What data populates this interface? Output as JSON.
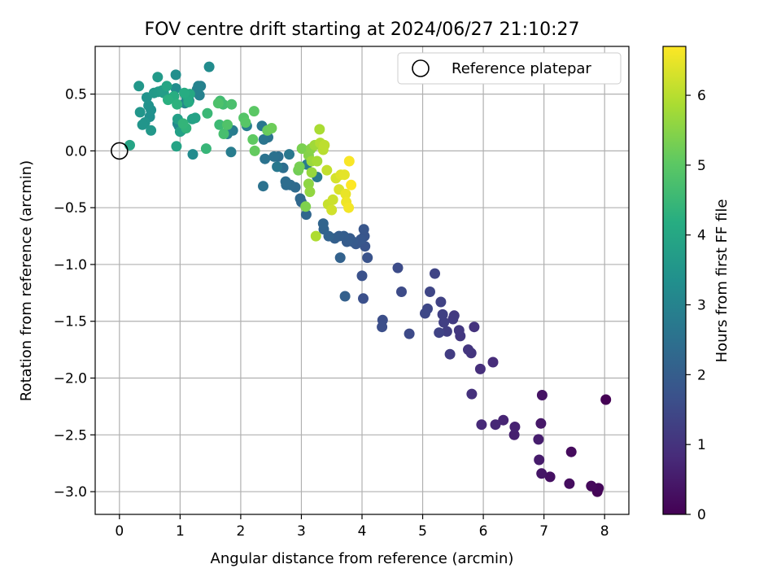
{
  "chart_data": {
    "type": "scatter",
    "title": "FOV centre drift starting at 2024/06/27 21:10:27",
    "xlabel": "Angular distance from reference (arcmin)",
    "ylabel": "Rotation from reference (arcmin)",
    "xlim": [
      -0.4,
      8.4
    ],
    "ylim": [
      -3.2,
      0.92
    ],
    "xticks": [
      0,
      1,
      2,
      3,
      4,
      5,
      6,
      7,
      8
    ],
    "yticks": [
      -3.0,
      -2.5,
      -2.0,
      -1.5,
      -1.0,
      -0.5,
      0.0,
      0.5
    ],
    "xtick_labels": [
      "0",
      "1",
      "2",
      "3",
      "4",
      "5",
      "6",
      "7",
      "8"
    ],
    "ytick_labels": [
      "−3.0",
      "−2.5",
      "−2.0",
      "−1.5",
      "−1.0",
      "−0.5",
      "0.0",
      "0.5"
    ],
    "grid": true,
    "legend": {
      "position": "top-right",
      "entries": [
        "Reference platepar"
      ]
    },
    "reference_point": {
      "x": 0.0,
      "y": 0.0,
      "marker": "open-circle"
    },
    "colorbar": {
      "label": "Hours from first FF file",
      "colormap": "viridis",
      "range": [
        0,
        6.7
      ],
      "ticks": [
        0,
        1,
        2,
        3,
        4,
        5,
        6
      ],
      "tick_labels": [
        "0",
        "1",
        "2",
        "3",
        "4",
        "5",
        "6"
      ]
    },
    "points": [
      [
        8.02,
        -2.19,
        0.0
      ],
      [
        7.88,
        -3.0,
        0.05
      ],
      [
        7.9,
        -2.97,
        0.1
      ],
      [
        7.78,
        -2.95,
        0.15
      ],
      [
        7.45,
        -2.65,
        0.2
      ],
      [
        7.42,
        -2.93,
        0.25
      ],
      [
        7.1,
        -2.87,
        0.3
      ],
      [
        6.97,
        -2.15,
        0.35
      ],
      [
        6.96,
        -2.84,
        0.4
      ],
      [
        6.95,
        -2.4,
        0.45
      ],
      [
        6.92,
        -2.72,
        0.5
      ],
      [
        6.91,
        -2.54,
        0.55
      ],
      [
        6.51,
        -2.5,
        0.6
      ],
      [
        6.52,
        -2.43,
        0.65
      ],
      [
        6.33,
        -2.37,
        0.7
      ],
      [
        6.2,
        -2.41,
        0.75
      ],
      [
        5.97,
        -2.41,
        0.8
      ],
      [
        6.16,
        -1.86,
        0.85
      ],
      [
        5.95,
        -1.92,
        0.9
      ],
      [
        5.81,
        -2.14,
        0.95
      ],
      [
        5.85,
        -1.55,
        1.0
      ],
      [
        5.8,
        -1.78,
        1.03
      ],
      [
        5.75,
        -1.75,
        1.06
      ],
      [
        5.62,
        -1.63,
        1.09
      ],
      [
        5.6,
        -1.58,
        1.12
      ],
      [
        5.52,
        -1.45,
        1.15
      ],
      [
        5.5,
        -1.48,
        1.18
      ],
      [
        5.45,
        -1.79,
        1.21
      ],
      [
        5.4,
        -1.59,
        1.24
      ],
      [
        5.35,
        -1.51,
        1.27
      ],
      [
        5.33,
        -1.44,
        1.3
      ],
      [
        5.3,
        -1.33,
        1.33
      ],
      [
        5.27,
        -1.6,
        1.36
      ],
      [
        5.2,
        -1.08,
        1.39
      ],
      [
        5.12,
        -1.24,
        1.42
      ],
      [
        5.08,
        -1.39,
        1.45
      ],
      [
        5.04,
        -1.43,
        1.48
      ],
      [
        4.78,
        -1.61,
        1.51
      ],
      [
        4.65,
        -1.24,
        1.54
      ],
      [
        4.59,
        -1.03,
        1.57
      ],
      [
        4.34,
        -1.49,
        1.6
      ],
      [
        4.33,
        -1.55,
        1.63
      ],
      [
        4.02,
        -1.3,
        1.66
      ],
      [
        4.0,
        -1.1,
        1.69
      ],
      [
        4.09,
        -0.94,
        1.72
      ],
      [
        4.05,
        -0.84,
        1.75
      ],
      [
        4.04,
        -0.75,
        1.78
      ],
      [
        4.03,
        -0.69,
        1.81
      ],
      [
        3.98,
        -0.78,
        1.84
      ],
      [
        3.9,
        -0.82,
        1.87
      ],
      [
        3.85,
        -0.8,
        1.9
      ],
      [
        3.8,
        -0.77,
        1.93
      ],
      [
        3.75,
        -0.8,
        1.96
      ],
      [
        3.7,
        -0.75,
        1.99
      ],
      [
        3.62,
        -0.75,
        2.02
      ],
      [
        3.55,
        -0.77,
        2.05
      ],
      [
        3.72,
        -1.28,
        2.08
      ],
      [
        3.64,
        -0.94,
        2.11
      ],
      [
        3.45,
        -0.75,
        2.14
      ],
      [
        3.37,
        -0.69,
        2.17
      ],
      [
        3.36,
        -0.64,
        2.2
      ],
      [
        3.08,
        -0.56,
        2.23
      ],
      [
        3.0,
        -0.45,
        2.26
      ],
      [
        2.98,
        -0.42,
        2.29
      ],
      [
        2.9,
        -0.32,
        2.32
      ],
      [
        2.82,
        -0.3,
        2.35
      ],
      [
        2.75,
        -0.3,
        2.38
      ],
      [
        2.74,
        -0.27,
        2.41
      ],
      [
        2.7,
        -0.15,
        2.44
      ],
      [
        2.62,
        -0.05,
        2.47
      ],
      [
        2.55,
        -0.05,
        2.5
      ],
      [
        2.37,
        -0.31,
        2.53
      ],
      [
        2.4,
        -0.07,
        2.56
      ],
      [
        2.45,
        0.12,
        2.59
      ],
      [
        2.38,
        0.1,
        2.62
      ],
      [
        2.35,
        0.22,
        2.65
      ],
      [
        2.8,
        -0.03,
        2.68
      ],
      [
        2.6,
        -0.14,
        2.71
      ],
      [
        3.26,
        -0.23,
        2.74
      ],
      [
        3.09,
        -0.12,
        2.77
      ],
      [
        1.87,
        0.18,
        2.8
      ],
      [
        1.84,
        -0.01,
        2.83
      ],
      [
        1.78,
        0.15,
        2.86
      ],
      [
        2.1,
        0.22,
        2.89
      ],
      [
        1.34,
        0.57,
        2.92
      ],
      [
        1.32,
        0.49,
        2.95
      ],
      [
        1.28,
        0.54,
        2.98
      ],
      [
        1.3,
        0.57,
        3.01
      ],
      [
        1.15,
        0.44,
        3.04
      ],
      [
        1.1,
        0.48,
        3.07
      ],
      [
        1.08,
        0.42,
        3.1
      ],
      [
        1.02,
        0.18,
        3.13
      ],
      [
        0.98,
        0.22,
        3.16
      ],
      [
        0.96,
        0.24,
        3.19
      ],
      [
        1.21,
        -0.03,
        3.22
      ],
      [
        1.48,
        0.74,
        3.25
      ],
      [
        0.93,
        0.55,
        3.28
      ],
      [
        0.93,
        0.67,
        3.31
      ],
      [
        0.5,
        0.3,
        3.34
      ],
      [
        0.52,
        0.36,
        3.37
      ],
      [
        0.48,
        0.4,
        3.4
      ],
      [
        0.45,
        0.47,
        3.43
      ],
      [
        0.42,
        0.25,
        3.46
      ],
      [
        0.38,
        0.23,
        3.49
      ],
      [
        0.34,
        0.34,
        3.52
      ],
      [
        0.32,
        0.57,
        3.55
      ],
      [
        0.52,
        0.18,
        3.58
      ],
      [
        0.57,
        0.51,
        3.61
      ],
      [
        0.63,
        0.65,
        3.64
      ],
      [
        0.64,
        0.52,
        3.67
      ],
      [
        0.7,
        0.53,
        3.7
      ],
      [
        0.73,
        0.51,
        3.73
      ],
      [
        0.82,
        0.46,
        3.76
      ],
      [
        0.96,
        0.28,
        3.79
      ],
      [
        1.0,
        0.17,
        3.82
      ],
      [
        1.2,
        0.28,
        3.85
      ],
      [
        1.25,
        0.29,
        3.88
      ],
      [
        0.94,
        0.04,
        3.91
      ],
      [
        0.17,
        0.05,
        3.94
      ],
      [
        0.78,
        0.57,
        3.97
      ],
      [
        1.12,
        0.48,
        4.0
      ],
      [
        1.16,
        0.5,
        4.05
      ],
      [
        1.14,
        0.43,
        4.1
      ],
      [
        1.07,
        0.51,
        4.15
      ],
      [
        0.9,
        0.48,
        4.2
      ],
      [
        0.8,
        0.45,
        4.25
      ],
      [
        0.95,
        0.41,
        4.3
      ],
      [
        1.1,
        0.2,
        4.35
      ],
      [
        1.05,
        0.24,
        4.4
      ],
      [
        1.43,
        0.02,
        4.45
      ],
      [
        1.45,
        0.33,
        4.5
      ],
      [
        1.65,
        0.23,
        4.55
      ],
      [
        1.66,
        0.44,
        4.6
      ],
      [
        1.71,
        0.41,
        4.65
      ],
      [
        1.72,
        0.15,
        4.7
      ],
      [
        1.85,
        0.41,
        4.75
      ],
      [
        1.63,
        0.42,
        4.8
      ],
      [
        1.78,
        0.23,
        4.85
      ],
      [
        2.05,
        0.29,
        4.9
      ],
      [
        2.08,
        0.25,
        4.95
      ],
      [
        2.22,
        0.35,
        5.0
      ],
      [
        2.2,
        0.1,
        5.05
      ],
      [
        2.23,
        0.0,
        5.1
      ],
      [
        2.44,
        0.18,
        5.15
      ],
      [
        2.51,
        0.2,
        5.2
      ],
      [
        2.95,
        -0.17,
        5.25
      ],
      [
        2.97,
        -0.14,
        5.3
      ],
      [
        3.01,
        0.02,
        5.35
      ],
      [
        3.07,
        -0.49,
        5.4
      ],
      [
        3.12,
        -0.04,
        5.45
      ],
      [
        3.16,
        0.02,
        5.5
      ],
      [
        3.12,
        -0.29,
        5.55
      ],
      [
        3.14,
        -0.36,
        5.6
      ],
      [
        3.17,
        -0.19,
        5.65
      ],
      [
        3.17,
        -0.09,
        5.7
      ],
      [
        3.22,
        0.05,
        5.75
      ],
      [
        3.26,
        -0.09,
        5.8
      ],
      [
        3.3,
        0.19,
        5.85
      ],
      [
        3.24,
        -0.75,
        5.9
      ],
      [
        3.31,
        0.07,
        5.95
      ],
      [
        3.36,
        0.01,
        6.0
      ],
      [
        3.38,
        0.05,
        6.05
      ],
      [
        3.42,
        -0.17,
        6.1
      ],
      [
        3.44,
        -0.47,
        6.15
      ],
      [
        3.52,
        -0.43,
        6.2
      ],
      [
        3.5,
        -0.52,
        6.25
      ],
      [
        3.57,
        -0.24,
        6.3
      ],
      [
        3.62,
        -0.34,
        6.35
      ],
      [
        3.65,
        -0.21,
        6.4
      ],
      [
        3.71,
        -0.21,
        6.45
      ],
      [
        3.73,
        -0.38,
        6.5
      ],
      [
        3.74,
        -0.45,
        6.55
      ],
      [
        3.78,
        -0.5,
        6.6
      ],
      [
        3.79,
        -0.09,
        6.65
      ],
      [
        3.82,
        -0.3,
        6.7
      ]
    ]
  }
}
